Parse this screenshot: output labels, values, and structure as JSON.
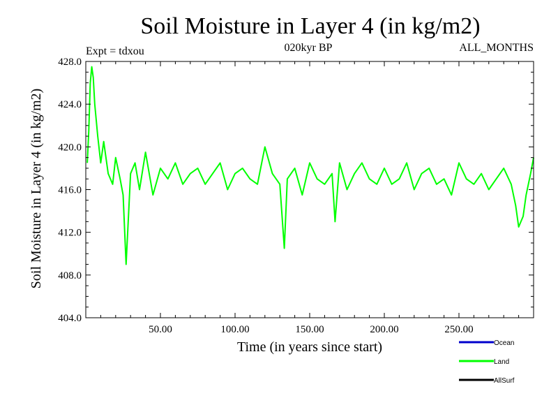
{
  "chart_data": {
    "type": "line",
    "title": "Soil Moisture in Layer 4 (in kg/m2)",
    "subtitle_left": "Expt = tdxou",
    "subtitle_center": "020kyr BP",
    "subtitle_right": "ALL_MONTHS",
    "xlabel": "Time (in years since start)",
    "ylabel": "Soil Moisture in Layer 4 (in kg/m2)",
    "xlim": [
      0,
      300
    ],
    "ylim": [
      404.0,
      428.0
    ],
    "x_ticks": [
      50,
      100,
      150,
      200,
      250
    ],
    "x_tick_labels": [
      "50.00",
      "100.00",
      "150.00",
      "200.00",
      "250.00"
    ],
    "y_ticks": [
      404,
      408,
      412,
      416,
      420,
      424,
      428
    ],
    "y_tick_labels": [
      "404.0",
      "408.0",
      "412.0",
      "416.0",
      "420.0",
      "424.0",
      "428.0"
    ],
    "grid": false,
    "legend_position": "bottom-right",
    "colors": {
      "Ocean": "#0000cc",
      "Land": "#00ff00",
      "AllSurf": "#000000"
    },
    "series": [
      {
        "name": "Ocean",
        "x": [],
        "y": []
      },
      {
        "name": "Land",
        "x": [
          1,
          2,
          3,
          4,
          5,
          6,
          8,
          10,
          12,
          15,
          18,
          20,
          23,
          25,
          27,
          30,
          33,
          36,
          40,
          45,
          50,
          55,
          60,
          65,
          70,
          75,
          80,
          85,
          90,
          95,
          100,
          105,
          110,
          115,
          120,
          125,
          130,
          133,
          135,
          140,
          145,
          150,
          155,
          160,
          165,
          167,
          170,
          175,
          180,
          185,
          190,
          195,
          200,
          205,
          210,
          215,
          220,
          225,
          230,
          235,
          240,
          245,
          250,
          255,
          260,
          265,
          270,
          275,
          280,
          285,
          288,
          290,
          293,
          295,
          298,
          300
        ],
        "y": [
          418.5,
          421.5,
          426.0,
          427.5,
          426.5,
          424.0,
          421.0,
          418.5,
          420.5,
          417.5,
          416.5,
          419.0,
          417.0,
          415.5,
          409.0,
          417.5,
          418.5,
          416.0,
          419.5,
          415.5,
          418.0,
          417.0,
          418.5,
          416.5,
          417.5,
          418.0,
          416.5,
          417.5,
          418.5,
          416.0,
          417.5,
          418.0,
          417.0,
          416.5,
          420.0,
          417.5,
          416.5,
          410.5,
          417.0,
          418.0,
          415.5,
          418.5,
          417.0,
          416.5,
          417.5,
          413.0,
          418.5,
          416.0,
          417.5,
          418.5,
          417.0,
          416.5,
          418.0,
          416.5,
          417.0,
          418.5,
          416.0,
          417.5,
          418.0,
          416.5,
          417.0,
          415.5,
          418.5,
          417.0,
          416.5,
          417.5,
          416.0,
          417.0,
          418.0,
          416.5,
          414.5,
          412.5,
          413.5,
          415.5,
          417.5,
          419.0
        ]
      },
      {
        "name": "AllSurf",
        "x": [],
        "y": []
      }
    ],
    "legend": [
      "Ocean",
      "Land",
      "AllSurf"
    ]
  }
}
